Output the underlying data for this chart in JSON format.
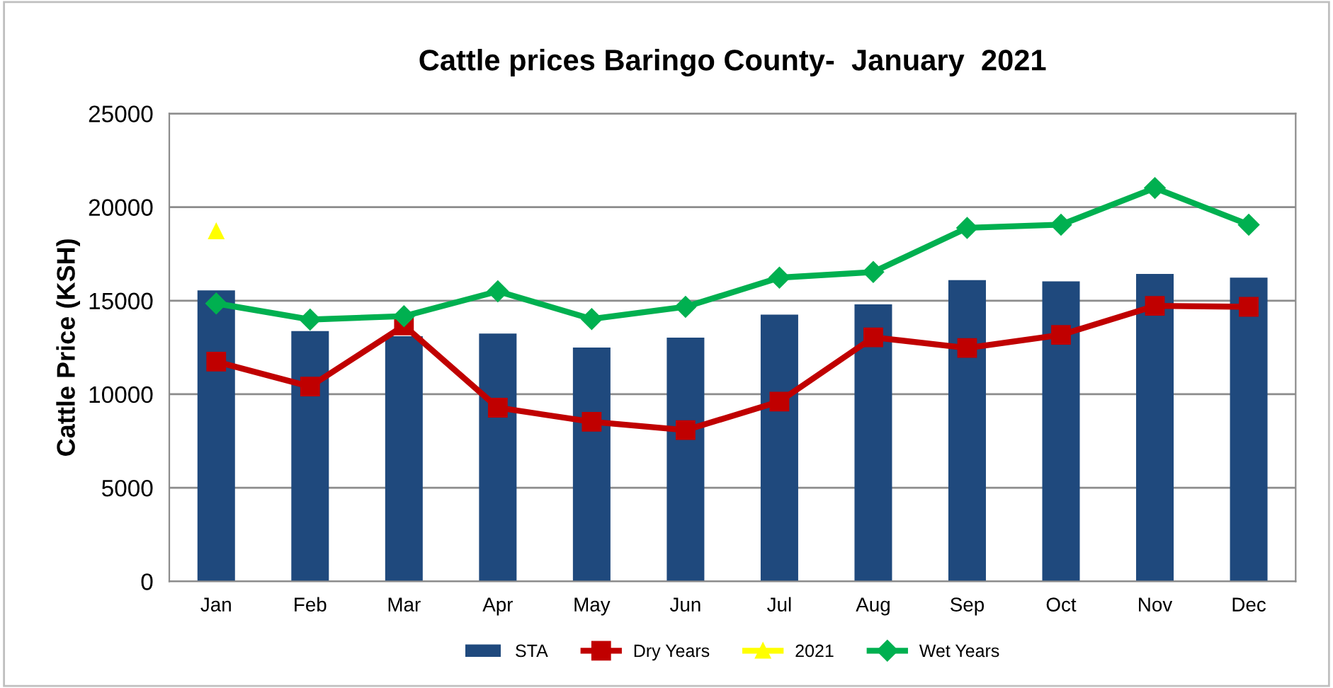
{
  "chart_data": {
    "type": "bar",
    "title": "Cattle prices Baringo County-  January  2021",
    "ylabel": "Cattle Price (KSH)",
    "categories": [
      "Jan",
      "Feb",
      "Mar",
      "Apr",
      "May",
      "Jun",
      "Jul",
      "Aug",
      "Sep",
      "Oct",
      "Nov",
      "Dec"
    ],
    "series": [
      {
        "name": "STA",
        "color": "#1f497d",
        "values": [
          15550,
          13370,
          13100,
          13240,
          12490,
          13020,
          14250,
          14800,
          16100,
          16030,
          16430,
          16230
        ]
      },
      {
        "name": "Dry Years",
        "type": "line",
        "color": "#c00000",
        "marker": "square",
        "values": [
          11740,
          10410,
          13670,
          9280,
          8530,
          8080,
          9610,
          13040,
          12470,
          13170,
          14720,
          14670
        ]
      },
      {
        "name": "2021",
        "type": "line",
        "color": "#ffff00",
        "marker": "triangle",
        "values": [
          18700,
          null,
          null,
          null,
          null,
          null,
          null,
          null,
          null,
          null,
          null,
          null
        ]
      },
      {
        "name": "Wet Years",
        "type": "line",
        "color": "#00b050",
        "marker": "diamond",
        "values": [
          14850,
          13990,
          14170,
          15500,
          14020,
          14670,
          16230,
          16530,
          18890,
          19060,
          21020,
          19060
        ]
      }
    ],
    "ylim": [
      0,
      25000
    ],
    "yticks": [
      0,
      5000,
      10000,
      15000,
      20000,
      25000
    ],
    "grid": "y",
    "legend": "bottom"
  }
}
